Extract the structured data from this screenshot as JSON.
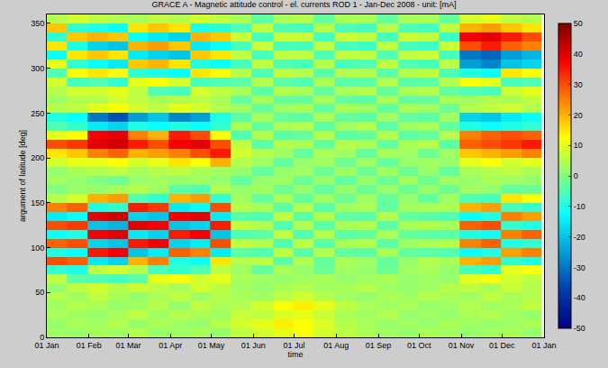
{
  "chart_data": {
    "type": "heatmap",
    "title": "GRACE A - Magnetic attitude control - el. currents ROD 1 - Jan-Dec 2008 - unit: [mA]",
    "xlabel": "time",
    "ylabel": "argument of latitude [deg]",
    "color": "Jet",
    "x": [
      "2008-01-08",
      "2008-01-23",
      "2008-02-08",
      "2008-02-23",
      "2008-03-08",
      "2008-03-23",
      "2008-04-08",
      "2008-04-23",
      "2008-05-08",
      "2008-05-23",
      "2008-06-08",
      "2008-06-23",
      "2008-07-08",
      "2008-07-23",
      "2008-08-08",
      "2008-08-23",
      "2008-09-08",
      "2008-09-23",
      "2008-10-08",
      "2008-10-23",
      "2008-11-08",
      "2008-11-23",
      "2008-12-08",
      "2008-12-23"
    ],
    "y": [
      5,
      15,
      25,
      35,
      45,
      55,
      65,
      75,
      85,
      95,
      105,
      115,
      125,
      135,
      145,
      155,
      165,
      175,
      185,
      195,
      205,
      215,
      225,
      235,
      245,
      255,
      265,
      275,
      285,
      295,
      305,
      315,
      325,
      335,
      345,
      355
    ],
    "z": [
      [
        3,
        2,
        4,
        3,
        5,
        2,
        3,
        4,
        2,
        6,
        8,
        10,
        12,
        8,
        6,
        4,
        3,
        2,
        4,
        3,
        2,
        3,
        4,
        2
      ],
      [
        2,
        4,
        3,
        5,
        2,
        4,
        3,
        2,
        5,
        8,
        10,
        14,
        12,
        9,
        5,
        4,
        2,
        3,
        2,
        4,
        3,
        2,
        3,
        4
      ],
      [
        4,
        3,
        2,
        4,
        6,
        3,
        5,
        4,
        3,
        7,
        6,
        9,
        10,
        7,
        4,
        3,
        5,
        2,
        3,
        2,
        4,
        5,
        3,
        2
      ],
      [
        3,
        5,
        4,
        2,
        3,
        5,
        2,
        6,
        4,
        5,
        8,
        12,
        14,
        10,
        6,
        4,
        3,
        4,
        2,
        3,
        5,
        3,
        4,
        6
      ],
      [
        5,
        3,
        6,
        4,
        2,
        4,
        6,
        3,
        5,
        4,
        3,
        6,
        8,
        5,
        3,
        2,
        4,
        3,
        5,
        4,
        3,
        6,
        4,
        5
      ],
      [
        2,
        6,
        8,
        5,
        7,
        6,
        4,
        8,
        6,
        3,
        2,
        4,
        5,
        3,
        4,
        5,
        3,
        2,
        3,
        5,
        6,
        4,
        7,
        5
      ],
      [
        6,
        -4,
        -5,
        -6,
        -4,
        10,
        12,
        8,
        10,
        4,
        3,
        2,
        3,
        4,
        2,
        3,
        4,
        2,
        3,
        2,
        10,
        12,
        8,
        6
      ],
      [
        -8,
        -10,
        6,
        8,
        5,
        -6,
        -8,
        -5,
        6,
        3,
        -3,
        4,
        2,
        -2,
        3,
        2,
        -2,
        3,
        4,
        2,
        -6,
        -8,
        10,
        12
      ],
      [
        30,
        28,
        -15,
        -18,
        20,
        25,
        -10,
        -12,
        15,
        5,
        6,
        -4,
        5,
        -3,
        4,
        3,
        -3,
        2,
        5,
        4,
        20,
        22,
        -8,
        -10
      ],
      [
        -10,
        -12,
        35,
        38,
        -20,
        -15,
        28,
        25,
        -15,
        -4,
        -5,
        6,
        -4,
        5,
        -3,
        -4,
        4,
        -3,
        -4,
        -5,
        -12,
        -10,
        22,
        25
      ],
      [
        28,
        30,
        -18,
        -20,
        35,
        38,
        -18,
        -15,
        30,
        6,
        5,
        -5,
        6,
        -4,
        4,
        5,
        -4,
        3,
        4,
        5,
        25,
        28,
        -10,
        -8
      ],
      [
        -12,
        -10,
        38,
        40,
        -15,
        -18,
        35,
        38,
        -20,
        -5,
        -4,
        6,
        -5,
        5,
        -4,
        -3,
        4,
        -3,
        -4,
        -4,
        -10,
        -12,
        25,
        28
      ],
      [
        30,
        32,
        -20,
        -22,
        40,
        38,
        -20,
        -18,
        35,
        6,
        5,
        -5,
        5,
        -4,
        4,
        5,
        -4,
        4,
        5,
        4,
        28,
        30,
        -8,
        -10
      ],
      [
        -15,
        -12,
        40,
        42,
        -18,
        -20,
        38,
        40,
        -15,
        -4,
        -5,
        6,
        -4,
        5,
        -3,
        -4,
        5,
        -3,
        -4,
        -5,
        -12,
        -10,
        25,
        22
      ],
      [
        25,
        28,
        -10,
        -8,
        35,
        32,
        -15,
        -12,
        30,
        5,
        4,
        -4,
        5,
        -4,
        3,
        4,
        -3,
        3,
        4,
        4,
        20,
        22,
        -6,
        -8
      ],
      [
        5,
        8,
        20,
        22,
        -5,
        -8,
        20,
        22,
        -8,
        3,
        -3,
        4,
        -3,
        3,
        -2,
        3,
        -3,
        2,
        -3,
        3,
        -5,
        -6,
        15,
        12
      ],
      [
        0,
        2,
        2,
        4,
        5,
        3,
        -4,
        -5,
        5,
        2,
        3,
        -2,
        2,
        -3,
        2,
        -2,
        2,
        -2,
        2,
        -2,
        3,
        2,
        -3,
        -2
      ],
      [
        3,
        2,
        0,
        -2,
        2,
        3,
        2,
        3,
        2,
        -3,
        2,
        3,
        -2,
        2,
        -3,
        2,
        -2,
        3,
        -2,
        3,
        2,
        4,
        3,
        2
      ],
      [
        2,
        4,
        5,
        6,
        4,
        5,
        6,
        4,
        3,
        2,
        -3,
        2,
        3,
        -2,
        3,
        -2,
        3,
        -2,
        2,
        -3,
        4,
        5,
        6,
        4
      ],
      [
        8,
        10,
        10,
        12,
        8,
        10,
        15,
        12,
        20,
        5,
        3,
        -3,
        2,
        3,
        -2,
        3,
        -3,
        2,
        3,
        2,
        10,
        12,
        8,
        10
      ],
      [
        15,
        18,
        25,
        28,
        20,
        22,
        25,
        30,
        35,
        8,
        5,
        3,
        -3,
        4,
        3,
        -3,
        4,
        3,
        -2,
        3,
        18,
        20,
        22,
        25
      ],
      [
        30,
        32,
        40,
        42,
        35,
        30,
        38,
        40,
        30,
        6,
        -4,
        5,
        4,
        -3,
        5,
        4,
        -3,
        4,
        5,
        -4,
        28,
        30,
        32,
        35
      ],
      [
        10,
        12,
        38,
        40,
        25,
        20,
        35,
        30,
        12,
        -5,
        5,
        -4,
        -3,
        5,
        -4,
        -3,
        5,
        -4,
        -3,
        5,
        25,
        28,
        30,
        28
      ],
      [
        -5,
        -8,
        -15,
        -18,
        -10,
        -12,
        -10,
        -12,
        -8,
        4,
        -3,
        4,
        5,
        -4,
        3,
        5,
        -4,
        3,
        4,
        -3,
        -10,
        -12,
        -10,
        -8
      ],
      [
        -10,
        -12,
        -30,
        -35,
        -25,
        -20,
        -28,
        -25,
        -10,
        -4,
        4,
        -3,
        -4,
        4,
        -3,
        -4,
        3,
        -3,
        -4,
        3,
        -18,
        -20,
        -15,
        -12
      ],
      [
        5,
        6,
        10,
        12,
        8,
        6,
        10,
        8,
        5,
        3,
        -3,
        3,
        4,
        -3,
        4,
        3,
        -3,
        4,
        3,
        -2,
        5,
        6,
        8,
        5
      ],
      [
        3,
        5,
        5,
        8,
        6,
        4,
        5,
        6,
        4,
        -3,
        4,
        -3,
        -3,
        4,
        -3,
        -4,
        4,
        -3,
        -3,
        4,
        3,
        5,
        4,
        6
      ],
      [
        5,
        8,
        8,
        10,
        6,
        -5,
        -6,
        8,
        6,
        4,
        -4,
        5,
        4,
        -3,
        4,
        5,
        -3,
        4,
        5,
        -3,
        -5,
        -6,
        8,
        10
      ],
      [
        8,
        -6,
        -5,
        -8,
        10,
        12,
        8,
        -6,
        -5,
        -4,
        5,
        -4,
        -5,
        4,
        -4,
        -4,
        5,
        -4,
        -4,
        5,
        12,
        10,
        -6,
        -5
      ],
      [
        -5,
        12,
        15,
        12,
        -8,
        -10,
        -12,
        15,
        12,
        5,
        -5,
        6,
        5,
        -4,
        5,
        5,
        -4,
        5,
        6,
        -5,
        -10,
        -12,
        15,
        12
      ],
      [
        10,
        -8,
        -12,
        -15,
        18,
        20,
        15,
        -10,
        -12,
        -6,
        6,
        -5,
        -6,
        5,
        -6,
        -5,
        6,
        -5,
        -6,
        6,
        -25,
        -28,
        -20,
        -18
      ],
      [
        -12,
        15,
        18,
        15,
        -15,
        -18,
        -20,
        18,
        15,
        6,
        -6,
        6,
        6,
        -5,
        6,
        6,
        -5,
        6,
        7,
        -6,
        -30,
        -32,
        -25,
        -22
      ],
      [
        15,
        -10,
        -18,
        -20,
        20,
        22,
        18,
        -15,
        -12,
        -6,
        7,
        -6,
        -6,
        6,
        -6,
        -7,
        6,
        -6,
        -7,
        7,
        30,
        35,
        28,
        25
      ],
      [
        -8,
        18,
        20,
        18,
        -12,
        -15,
        -18,
        20,
        18,
        7,
        -6,
        7,
        7,
        -6,
        7,
        6,
        -6,
        7,
        6,
        -7,
        38,
        40,
        35,
        30
      ],
      [
        18,
        -8,
        -10,
        -12,
        15,
        18,
        15,
        -10,
        -8,
        -5,
        6,
        -5,
        -6,
        5,
        -5,
        -6,
        5,
        -5,
        -6,
        6,
        20,
        22,
        18,
        15
      ],
      [
        5,
        8,
        6,
        5,
        4,
        6,
        5,
        8,
        6,
        4,
        -4,
        4,
        5,
        -3,
        4,
        4,
        -3,
        4,
        4,
        -3,
        8,
        10,
        6,
        5
      ]
    ],
    "xlim": [
      "2008-01-01",
      "2009-01-01"
    ],
    "xticks": [
      {
        "value": "2008-01-01",
        "label": "01 Jan"
      },
      {
        "value": "2008-02-01",
        "label": "01 Feb"
      },
      {
        "value": "2008-03-01",
        "label": "01 Mar"
      },
      {
        "value": "2008-04-01",
        "label": "01 Apr"
      },
      {
        "value": "2008-05-01",
        "label": "01 May"
      },
      {
        "value": "2008-06-01",
        "label": "01 Jun"
      },
      {
        "value": "2008-07-01",
        "label": "01 Jul"
      },
      {
        "value": "2008-08-01",
        "label": "01 Aug"
      },
      {
        "value": "2008-09-01",
        "label": "01 Sep"
      },
      {
        "value": "2008-10-01",
        "label": "01 Oct"
      },
      {
        "value": "2008-11-01",
        "label": "01 Nov"
      },
      {
        "value": "2008-12-01",
        "label": "01 Dec"
      },
      {
        "value": "2009-01-01",
        "label": "01 Jan"
      }
    ],
    "ylim": [
      0,
      360
    ],
    "yticks": [
      0,
      50,
      100,
      150,
      200,
      250,
      300,
      350
    ],
    "colorbar": {
      "range": [
        -50,
        50
      ],
      "ticks": [
        -50,
        -40,
        -30,
        -20,
        -10,
        0,
        10,
        20,
        30,
        40,
        50
      ]
    },
    "grid": false
  }
}
